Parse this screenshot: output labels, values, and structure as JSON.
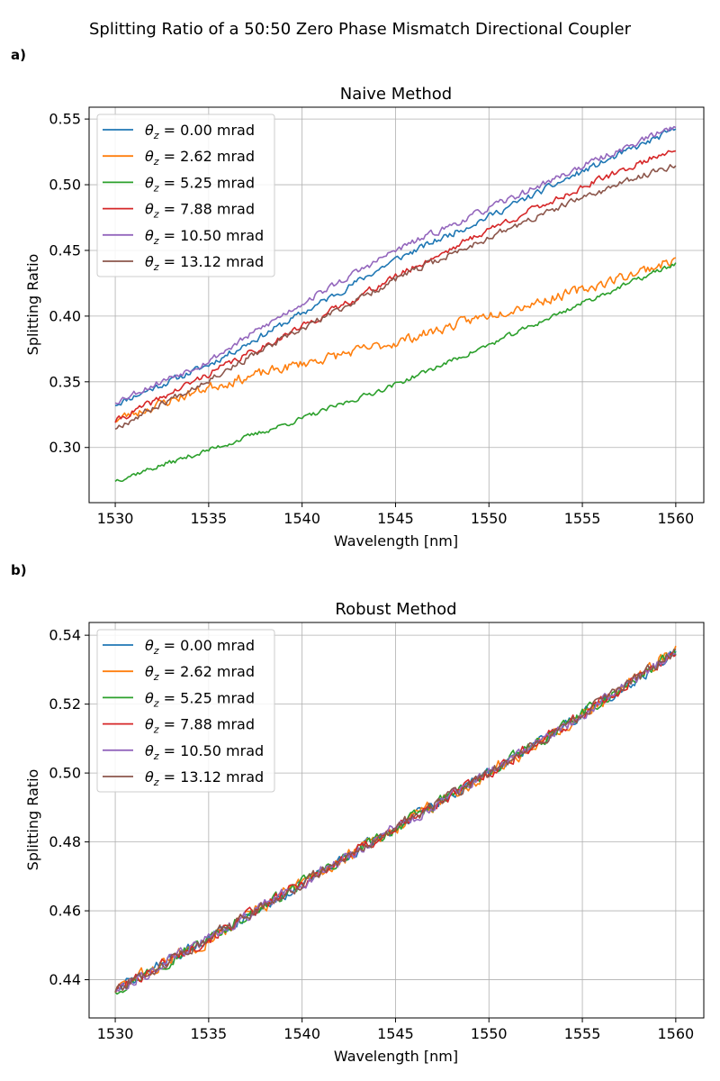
{
  "figure": {
    "suptitle": "Splitting Ratio of a 50:50 Zero Phase Mismatch Directional Coupler"
  },
  "chart_data": [
    {
      "type": "line",
      "panel_label": "a)",
      "title": "Naive Method",
      "xlabel": "Wavelength [nm]",
      "ylabel": "Splitting Ratio",
      "xlim": [
        1528.6,
        1561.5
      ],
      "ylim": [
        0.258,
        0.559
      ],
      "xticks": [
        1530,
        1535,
        1540,
        1545,
        1550,
        1555,
        1560
      ],
      "xtick_labels": [
        "1530",
        "1535",
        "1540",
        "1545",
        "1550",
        "1555",
        "1560"
      ],
      "yticks": [
        0.3,
        0.35,
        0.4,
        0.45,
        0.5,
        0.55
      ],
      "ytick_labels": [
        "0.30",
        "0.35",
        "0.40",
        "0.45",
        "0.50",
        "0.55"
      ],
      "grid": true,
      "legend_position": "top-left",
      "x_range": [
        1530,
        1560
      ],
      "series": [
        {
          "name_prefix": "θ",
          "name_sub": "z",
          "name_suffix": " = 0.00 mrad",
          "color": "#1f77b4",
          "anchors": [
            [
              1530,
              0.333
            ],
            [
              1535,
              0.363
            ],
            [
              1540,
              0.402
            ],
            [
              1545,
              0.443
            ],
            [
              1550,
              0.476
            ],
            [
              1555,
              0.51
            ],
            [
              1560,
              0.542
            ]
          ],
          "noise": 0.004,
          "seed": 11
        },
        {
          "name_prefix": "θ",
          "name_sub": "z",
          "name_suffix": " = 2.62 mrad",
          "color": "#ff7f0e",
          "anchors": [
            [
              1530,
              0.321
            ],
            [
              1535,
              0.346
            ],
            [
              1540,
              0.364
            ],
            [
              1545,
              0.38
            ],
            [
              1550,
              0.401
            ],
            [
              1555,
              0.42
            ],
            [
              1560,
              0.443
            ]
          ],
          "noise": 0.006,
          "seed": 23
        },
        {
          "name_prefix": "θ",
          "name_sub": "z",
          "name_suffix": " = 5.25 mrad",
          "color": "#2ca02c",
          "anchors": [
            [
              1530,
              0.275
            ],
            [
              1535,
              0.298
            ],
            [
              1540,
              0.322
            ],
            [
              1545,
              0.348
            ],
            [
              1550,
              0.378
            ],
            [
              1555,
              0.41
            ],
            [
              1560,
              0.44
            ]
          ],
          "noise": 0.003,
          "seed": 37
        },
        {
          "name_prefix": "θ",
          "name_sub": "z",
          "name_suffix": " = 7.88 mrad",
          "color": "#d62728",
          "anchors": [
            [
              1530,
              0.32
            ],
            [
              1535,
              0.356
            ],
            [
              1540,
              0.392
            ],
            [
              1545,
              0.43
            ],
            [
              1550,
              0.466
            ],
            [
              1555,
              0.498
            ],
            [
              1560,
              0.528
            ]
          ],
          "noise": 0.004,
          "seed": 41
        },
        {
          "name_prefix": "θ",
          "name_sub": "z",
          "name_suffix": " = 10.50 mrad",
          "color": "#9467bd",
          "anchors": [
            [
              1530,
              0.335
            ],
            [
              1535,
              0.366
            ],
            [
              1540,
              0.41
            ],
            [
              1545,
              0.45
            ],
            [
              1550,
              0.482
            ],
            [
              1555,
              0.514
            ],
            [
              1560,
              0.545
            ]
          ],
          "noise": 0.004,
          "seed": 53
        },
        {
          "name_prefix": "θ",
          "name_sub": "z",
          "name_suffix": " = 13.12 mrad",
          "color": "#8c564b",
          "anchors": [
            [
              1530,
              0.315
            ],
            [
              1535,
              0.352
            ],
            [
              1540,
              0.39
            ],
            [
              1545,
              0.428
            ],
            [
              1550,
              0.46
            ],
            [
              1555,
              0.49
            ],
            [
              1560,
              0.516
            ]
          ],
          "noise": 0.004,
          "seed": 67
        }
      ]
    },
    {
      "type": "line",
      "panel_label": "b)",
      "title": "Robust Method",
      "xlabel": "Wavelength [nm]",
      "ylabel": "Splitting Ratio",
      "xlim": [
        1528.6,
        1561.5
      ],
      "ylim": [
        0.4289,
        0.5437
      ],
      "xticks": [
        1530,
        1535,
        1540,
        1545,
        1550,
        1555,
        1560
      ],
      "xtick_labels": [
        "1530",
        "1535",
        "1540",
        "1545",
        "1550",
        "1555",
        "1560"
      ],
      "yticks": [
        0.44,
        0.46,
        0.48,
        0.5,
        0.52,
        0.54
      ],
      "ytick_labels": [
        "0.44",
        "0.46",
        "0.48",
        "0.50",
        "0.52",
        "0.54"
      ],
      "grid": true,
      "legend_position": "top-left",
      "x_range": [
        1530,
        1560
      ],
      "series": [
        {
          "name_prefix": "θ",
          "name_sub": "z",
          "name_suffix": " = 0.00 mrad",
          "color": "#1f77b4",
          "anchors": [
            [
              1530,
              0.437
            ],
            [
              1535,
              0.452
            ],
            [
              1540,
              0.468
            ],
            [
              1545,
              0.484
            ],
            [
              1550,
              0.5
            ],
            [
              1555,
              0.517
            ],
            [
              1560,
              0.535
            ]
          ],
          "noise": 0.0025,
          "seed": 71
        },
        {
          "name_prefix": "θ",
          "name_sub": "z",
          "name_suffix": " = 2.62 mrad",
          "color": "#ff7f0e",
          "anchors": [
            [
              1530,
              0.437
            ],
            [
              1535,
              0.452
            ],
            [
              1540,
              0.468
            ],
            [
              1545,
              0.484
            ],
            [
              1550,
              0.5
            ],
            [
              1555,
              0.517
            ],
            [
              1560,
              0.536
            ]
          ],
          "noise": 0.003,
          "seed": 83
        },
        {
          "name_prefix": "θ",
          "name_sub": "z",
          "name_suffix": " = 5.25 mrad",
          "color": "#2ca02c",
          "anchors": [
            [
              1530,
              0.437
            ],
            [
              1535,
              0.452
            ],
            [
              1540,
              0.468
            ],
            [
              1545,
              0.484
            ],
            [
              1550,
              0.5
            ],
            [
              1555,
              0.517
            ],
            [
              1560,
              0.535
            ]
          ],
          "noise": 0.0025,
          "seed": 97
        },
        {
          "name_prefix": "θ",
          "name_sub": "z",
          "name_suffix": " = 7.88 mrad",
          "color": "#d62728",
          "anchors": [
            [
              1530,
              0.437
            ],
            [
              1535,
              0.452
            ],
            [
              1540,
              0.468
            ],
            [
              1545,
              0.484
            ],
            [
              1550,
              0.5
            ],
            [
              1555,
              0.517
            ],
            [
              1560,
              0.535
            ]
          ],
          "noise": 0.0025,
          "seed": 101
        },
        {
          "name_prefix": "θ",
          "name_sub": "z",
          "name_suffix": " = 10.50 mrad",
          "color": "#9467bd",
          "anchors": [
            [
              1530,
              0.437
            ],
            [
              1535,
              0.452
            ],
            [
              1540,
              0.468
            ],
            [
              1545,
              0.484
            ],
            [
              1550,
              0.5
            ],
            [
              1555,
              0.517
            ],
            [
              1560,
              0.535
            ]
          ],
          "noise": 0.0025,
          "seed": 113
        },
        {
          "name_prefix": "θ",
          "name_sub": "z",
          "name_suffix": " = 13.12 mrad",
          "color": "#8c564b",
          "anchors": [
            [
              1530,
              0.437
            ],
            [
              1535,
              0.452
            ],
            [
              1540,
              0.468
            ],
            [
              1545,
              0.484
            ],
            [
              1550,
              0.5
            ],
            [
              1555,
              0.517
            ],
            [
              1560,
              0.535
            ]
          ],
          "noise": 0.0025,
          "seed": 127
        }
      ]
    }
  ]
}
